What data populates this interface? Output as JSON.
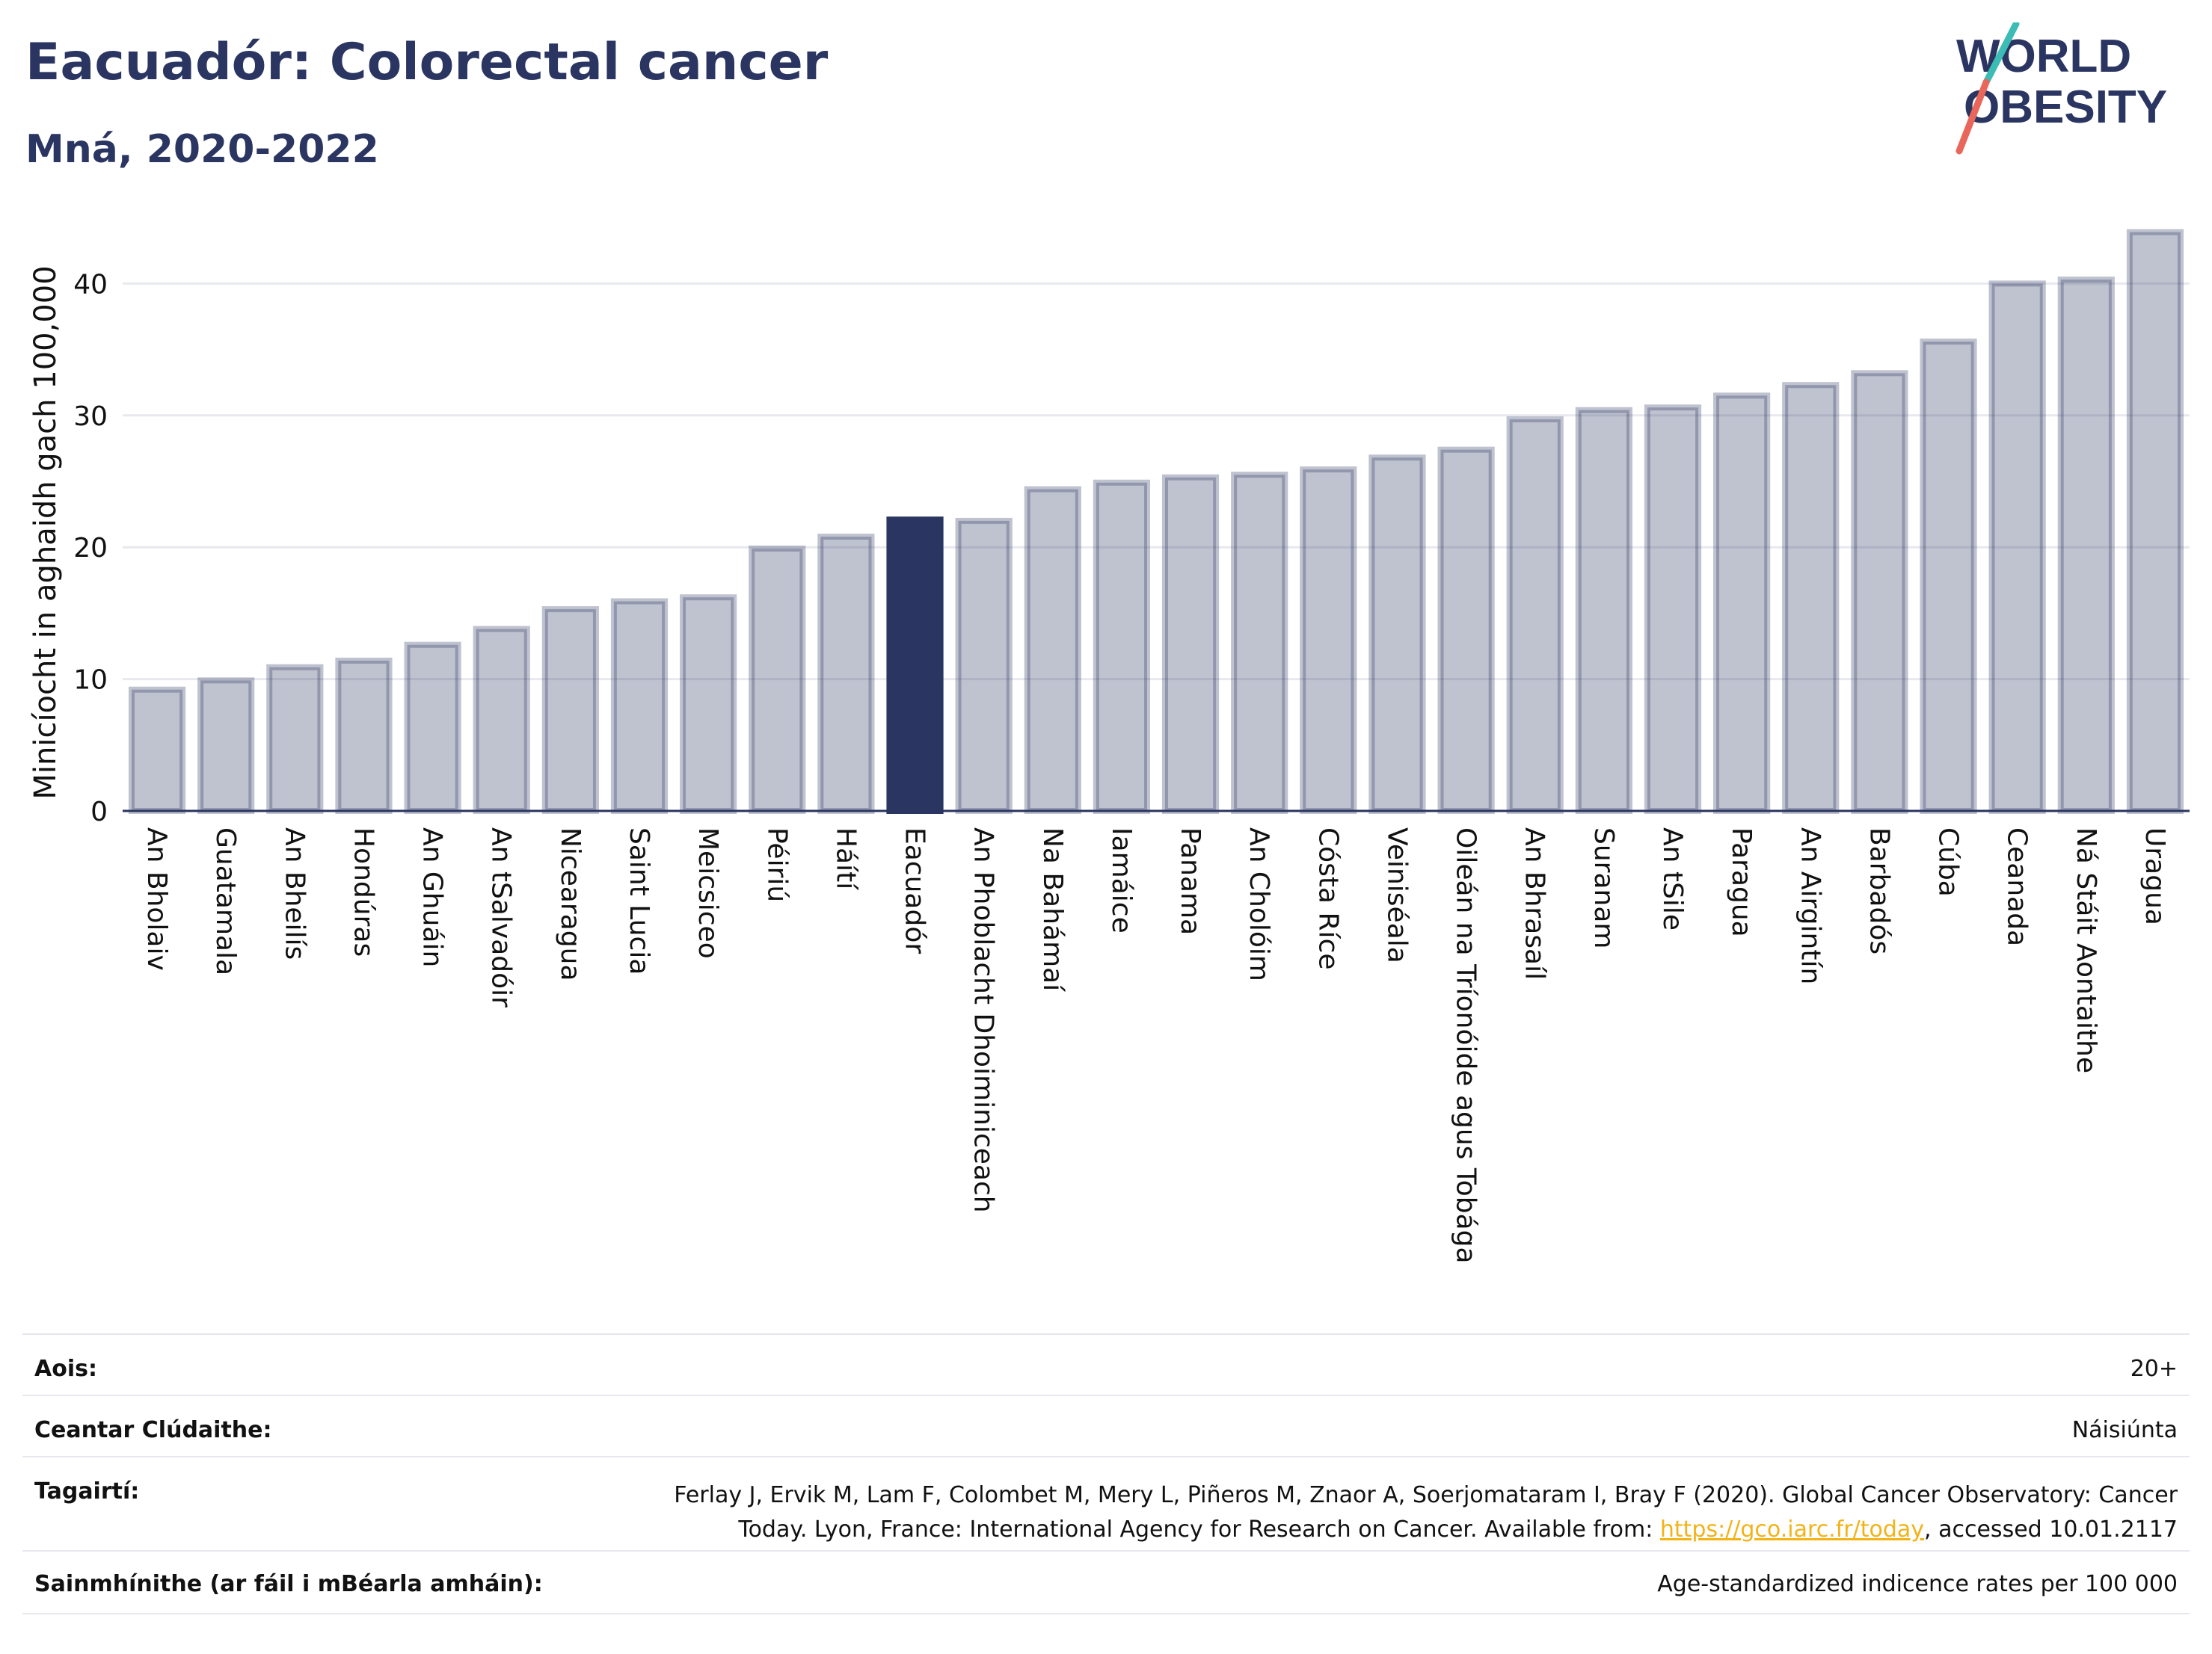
{
  "header": {
    "title": "Eacuadór: Colorectal cancer",
    "subtitle": "Mná, 2020-2022"
  },
  "logo": {
    "line1": "WORLD",
    "line2": "OBESITY"
  },
  "chart_data": {
    "type": "bar",
    "ylabel": "Minicíocht in aghaidh gach 100,000",
    "xlabel": "",
    "ylim": [
      0,
      44.5
    ],
    "yticks": [
      0,
      10,
      20,
      30,
      40
    ],
    "grid": true,
    "highlight": "Eacuadór",
    "colors": {
      "bar": "#2a3561",
      "bar_opacity": 0.3,
      "highlight": "#2a3561"
    },
    "categories": [
      "An Bholaiv",
      "Guatamala",
      "An Bheilís",
      "Hondúras",
      "An Ghuáin",
      "An tSalvadóir",
      "Nicearagua",
      "Saint Lucia",
      "Meicsiceo",
      "Péiriú",
      "Háítí",
      "Eacuadór",
      "An Phoblacht Dhoiminiceach",
      "Na Bahámaí",
      "Iamáice",
      "Panama",
      "An Cholóim",
      "Cósta Ríce",
      "Veiniséala",
      "Oileán na Tríonóide agus Tobága",
      "An Bhrasaíl",
      "Suranam",
      "An tSile",
      "Paragua",
      "An Airgintín",
      "Barbadós",
      "Cúba",
      "Ceanada",
      "Ná Stáit Aontaithe",
      "Uragua"
    ],
    "values": [
      9.2,
      9.9,
      10.9,
      11.4,
      12.6,
      13.8,
      15.3,
      15.9,
      16.2,
      19.9,
      20.8,
      22.1,
      22.0,
      24.4,
      24.9,
      25.3,
      25.5,
      25.9,
      26.8,
      27.4,
      29.7,
      30.4,
      30.6,
      31.5,
      32.3,
      33.2,
      35.6,
      40.0,
      40.3,
      43.9
    ]
  },
  "info": {
    "age_label": "Aois:",
    "age_value": "20+",
    "coverage_label": "Ceantar Clúdaithe:",
    "coverage_value": "Náisiúnta",
    "refs_label": "Tagairtí:",
    "refs_line1": "Ferlay J, Ervik M, Lam F, Colombet M, Mery L, Piñeros M, Znaor A, Soerjomataram I, Bray F (2020). Global Cancer Observatory: Cancer",
    "refs_line2_pre": "Today. Lyon, France: International Agency for Research on Cancer. Available from: ",
    "refs_link": "https://gco.iarc.fr/today",
    "refs_line2_post": ", accessed 10.01.2117",
    "defs_label": "Sainmhínithe (ar fáil i mBéarla amháin):",
    "defs_value": "Age-standardized indicence rates per 100 000"
  }
}
